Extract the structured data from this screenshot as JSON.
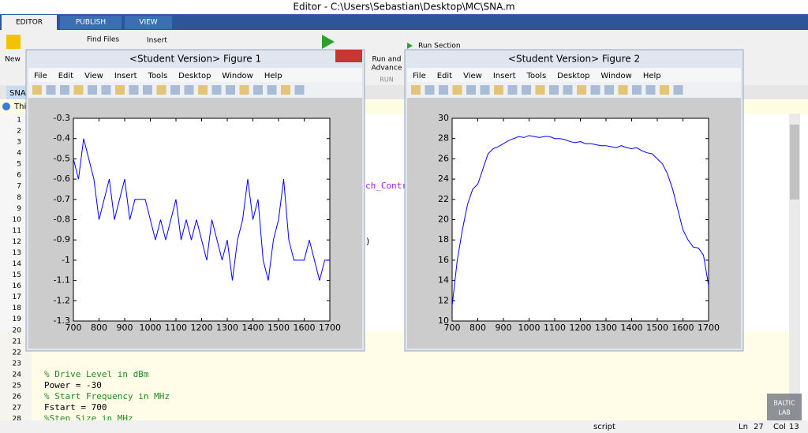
{
  "window_title": "Editor - C:\\Users\\Sebastian\\Desktop\\MC\\SNA.m",
  "tabs": [
    "EDITOR",
    "PUBLISH",
    "VIEW"
  ],
  "toolbar": {
    "new": "New",
    "find_files": "Find Files",
    "insert": "Insert",
    "run_advance": "Run and",
    "run_advance2": "Advance",
    "run_group": "RUN",
    "run_section": "Run Section"
  },
  "file_tab": "SNA.",
  "info_bar": "Thi",
  "editor": {
    "lines": [
      {
        "number": 1
      },
      {
        "number": 2
      },
      {
        "number": 3
      },
      {
        "number": 4
      },
      {
        "number": 5
      },
      {
        "number": 6
      },
      {
        "number": 7,
        "text": "ch_Contro",
        "color": "#a020f0"
      },
      {
        "number": 8
      },
      {
        "number": 9
      },
      {
        "number": 10
      },
      {
        "number": 11
      },
      {
        "number": 12,
        "text": ")",
        "color": "#000000"
      },
      {
        "number": 13
      },
      {
        "number": 14
      },
      {
        "number": 15
      },
      {
        "number": 16
      },
      {
        "number": 17
      },
      {
        "number": 18
      },
      {
        "number": 19
      },
      {
        "number": 20
      },
      {
        "number": 21
      },
      {
        "number": 22
      },
      {
        "number": 23
      },
      {
        "number": 24,
        "text": "% Drive Level in dBm",
        "color": "#228b22"
      },
      {
        "number": 25,
        "text": "Power = -30",
        "color": "#000000"
      },
      {
        "number": 26,
        "text": "% Start Frequency in MHz",
        "color": "#228b22"
      },
      {
        "number": 27,
        "text": "Fstart = 700",
        "color": "#000000"
      },
      {
        "number": 28,
        "text": "%Step Size in MHz",
        "color": "#228b22"
      }
    ]
  },
  "status": {
    "mode": "script",
    "ln_label": "Ln",
    "ln": "27",
    "col_label": "Col",
    "col": "13"
  },
  "watermark": [
    "BALTIC",
    "LAB"
  ],
  "menu": [
    "File",
    "Edit",
    "View",
    "Insert",
    "Tools",
    "Desktop",
    "Window",
    "Help"
  ],
  "figures": [
    {
      "title": "<Student Version> Figure 1",
      "chart": {
        "type": "line",
        "color": "#0000ff",
        "x": [
          700,
          720,
          740,
          760,
          780,
          800,
          820,
          840,
          860,
          880,
          900,
          920,
          940,
          960,
          980,
          1000,
          1020,
          1040,
          1060,
          1080,
          1100,
          1120,
          1140,
          1160,
          1180,
          1200,
          1220,
          1240,
          1260,
          1280,
          1300,
          1320,
          1340,
          1360,
          1380,
          1400,
          1420,
          1440,
          1460,
          1480,
          1500,
          1520,
          1540,
          1560,
          1580,
          1600,
          1620,
          1640,
          1660,
          1680,
          1700
        ],
        "values": [
          -0.5,
          -0.6,
          -0.4,
          -0.5,
          -0.6,
          -0.8,
          -0.7,
          -0.6,
          -0.8,
          -0.7,
          -0.6,
          -0.8,
          -0.7,
          -0.7,
          -0.7,
          -0.8,
          -0.9,
          -0.8,
          -0.9,
          -0.8,
          -0.7,
          -0.9,
          -0.8,
          -0.9,
          -0.8,
          -0.9,
          -1.0,
          -0.8,
          -0.9,
          -1.0,
          -0.9,
          -1.1,
          -0.9,
          -0.8,
          -0.6,
          -0.8,
          -0.7,
          -1.0,
          -1.1,
          -0.9,
          -0.8,
          -0.6,
          -0.9,
          -1.0,
          -1.0,
          -1.0,
          -0.9,
          -1.0,
          -1.1,
          -1.0,
          -1.0
        ],
        "xlim": [
          700,
          1700
        ],
        "ylim": [
          -1.3,
          -0.3
        ],
        "xticks": [
          700,
          800,
          900,
          1000,
          1100,
          1200,
          1300,
          1400,
          1500,
          1600,
          1700
        ],
        "yticks": [
          -0.3,
          -0.4,
          -0.5,
          -0.6,
          -0.7,
          -0.8,
          -0.9,
          -1,
          -1.1,
          -1.2,
          -1.3
        ]
      }
    },
    {
      "title": "<Student Version> Figure 2",
      "chart": {
        "type": "line",
        "color": "#0000ff",
        "x": [
          700,
          720,
          740,
          760,
          780,
          800,
          820,
          840,
          860,
          880,
          900,
          920,
          940,
          960,
          980,
          1000,
          1020,
          1040,
          1060,
          1080,
          1100,
          1120,
          1140,
          1160,
          1180,
          1200,
          1220,
          1240,
          1260,
          1280,
          1300,
          1320,
          1340,
          1360,
          1380,
          1400,
          1420,
          1440,
          1460,
          1480,
          1500,
          1520,
          1540,
          1560,
          1580,
          1600,
          1620,
          1640,
          1660,
          1680,
          1700
        ],
        "values": [
          11.5,
          16,
          19,
          21.5,
          23,
          23.5,
          25,
          26.5,
          27,
          27.2,
          27.5,
          27.8,
          28,
          28.2,
          28.1,
          28.3,
          28.2,
          28.1,
          28.2,
          28.2,
          28,
          28,
          27.9,
          27.7,
          27.6,
          27.7,
          27.5,
          27.5,
          27.4,
          27.3,
          27.3,
          27.2,
          27.1,
          27.3,
          27.1,
          27,
          27.1,
          26.8,
          26.6,
          26.5,
          26,
          25.5,
          24.5,
          23,
          21,
          19,
          18,
          17.3,
          17.2,
          16.5,
          13.5
        ],
        "xlim": [
          700,
          1700
        ],
        "ylim": [
          10,
          30
        ],
        "xticks": [
          700,
          800,
          900,
          1000,
          1100,
          1200,
          1300,
          1400,
          1500,
          1600,
          1700
        ],
        "yticks": [
          10,
          12,
          14,
          16,
          18,
          20,
          22,
          24,
          26,
          28,
          30
        ]
      }
    }
  ]
}
